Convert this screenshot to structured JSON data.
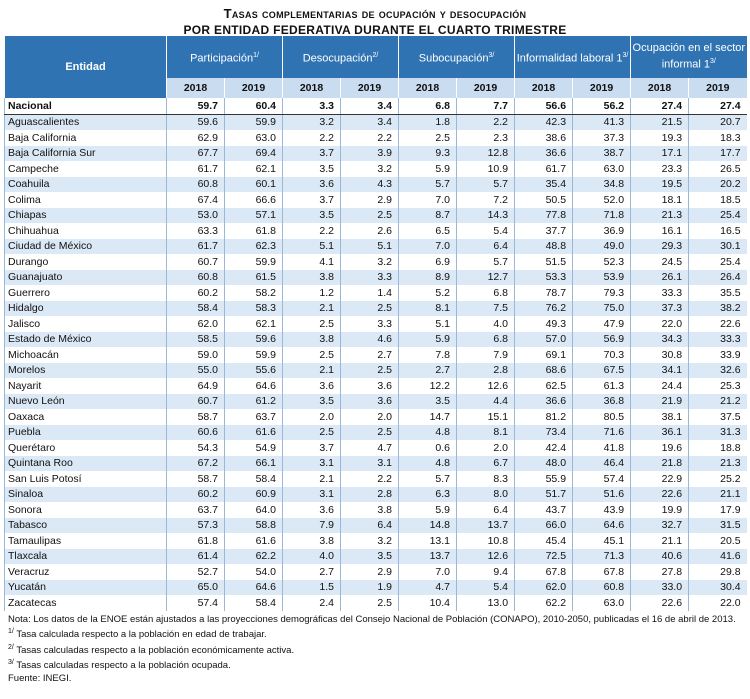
{
  "title": {
    "line1": "Tasas complementarias de ocupación y desocupación",
    "line2": "por entidad federativa durante el cuarto trimestre"
  },
  "table": {
    "entity_header": "Entidad",
    "groups": [
      {
        "label": "Participación",
        "note": "1/"
      },
      {
        "label": "Desocupación",
        "note": "2/"
      },
      {
        "label": "Subocupación",
        "note": "3/"
      },
      {
        "label": "Informalidad laboral 1",
        "note": "3/"
      },
      {
        "label": "Ocupación en el sector informal 1",
        "note": "3/"
      }
    ],
    "years": [
      "2018",
      "2019"
    ],
    "rows": [
      [
        "Nacional",
        "59.7",
        "60.4",
        "3.3",
        "3.4",
        "6.8",
        "7.7",
        "56.6",
        "56.2",
        "27.4",
        "27.4"
      ],
      [
        "Aguascalientes",
        "59.6",
        "59.9",
        "3.2",
        "3.4",
        "1.8",
        "2.2",
        "42.3",
        "41.3",
        "21.5",
        "20.7"
      ],
      [
        "Baja California",
        "62.9",
        "63.0",
        "2.2",
        "2.2",
        "2.5",
        "2.3",
        "38.6",
        "37.3",
        "19.3",
        "18.3"
      ],
      [
        "Baja California Sur",
        "67.7",
        "69.4",
        "3.7",
        "3.9",
        "9.3",
        "12.8",
        "36.6",
        "38.7",
        "17.1",
        "17.7"
      ],
      [
        "Campeche",
        "61.7",
        "62.1",
        "3.5",
        "3.2",
        "5.9",
        "10.9",
        "61.7",
        "63.0",
        "23.3",
        "26.5"
      ],
      [
        "Coahuila",
        "60.8",
        "60.1",
        "3.6",
        "4.3",
        "5.7",
        "5.7",
        "35.4",
        "34.8",
        "19.5",
        "20.2"
      ],
      [
        "Colima",
        "67.4",
        "66.6",
        "3.7",
        "2.9",
        "7.0",
        "7.2",
        "50.5",
        "52.0",
        "18.1",
        "18.5"
      ],
      [
        "Chiapas",
        "53.0",
        "57.1",
        "3.5",
        "2.5",
        "8.7",
        "14.3",
        "77.8",
        "71.8",
        "21.3",
        "25.4"
      ],
      [
        "Chihuahua",
        "63.3",
        "61.8",
        "2.2",
        "2.6",
        "6.5",
        "5.4",
        "37.7",
        "36.9",
        "16.1",
        "16.5"
      ],
      [
        "Ciudad de México",
        "61.7",
        "62.3",
        "5.1",
        "5.1",
        "7.0",
        "6.4",
        "48.8",
        "49.0",
        "29.3",
        "30.1"
      ],
      [
        "Durango",
        "60.7",
        "59.9",
        "4.1",
        "3.2",
        "6.9",
        "5.7",
        "51.5",
        "52.3",
        "24.5",
        "25.4"
      ],
      [
        "Guanajuato",
        "60.8",
        "61.5",
        "3.8",
        "3.3",
        "8.9",
        "12.7",
        "53.3",
        "53.9",
        "26.1",
        "26.4"
      ],
      [
        "Guerrero",
        "60.2",
        "58.2",
        "1.2",
        "1.4",
        "5.2",
        "6.8",
        "78.7",
        "79.3",
        "33.3",
        "35.5"
      ],
      [
        "Hidalgo",
        "58.4",
        "58.3",
        "2.1",
        "2.5",
        "8.1",
        "7.5",
        "76.2",
        "75.0",
        "37.3",
        "38.2"
      ],
      [
        "Jalisco",
        "62.0",
        "62.1",
        "2.5",
        "3.3",
        "5.1",
        "4.0",
        "49.3",
        "47.9",
        "22.0",
        "22.6"
      ],
      [
        "Estado de México",
        "58.5",
        "59.6",
        "3.8",
        "4.6",
        "5.9",
        "6.8",
        "57.0",
        "56.9",
        "34.3",
        "33.3"
      ],
      [
        "Michoacán",
        "59.0",
        "59.9",
        "2.5",
        "2.7",
        "7.8",
        "7.9",
        "69.1",
        "70.3",
        "30.8",
        "33.9"
      ],
      [
        "Morelos",
        "55.0",
        "55.6",
        "2.1",
        "2.5",
        "2.7",
        "2.8",
        "68.6",
        "67.5",
        "34.1",
        "32.6"
      ],
      [
        "Nayarit",
        "64.9",
        "64.6",
        "3.6",
        "3.6",
        "12.2",
        "12.6",
        "62.5",
        "61.3",
        "24.4",
        "25.3"
      ],
      [
        "Nuevo León",
        "60.7",
        "61.2",
        "3.5",
        "3.6",
        "3.5",
        "4.4",
        "36.6",
        "36.8",
        "21.9",
        "21.2"
      ],
      [
        "Oaxaca",
        "58.7",
        "63.7",
        "2.0",
        "2.0",
        "14.7",
        "15.1",
        "81.2",
        "80.5",
        "38.1",
        "37.5"
      ],
      [
        "Puebla",
        "60.6",
        "61.6",
        "2.5",
        "2.5",
        "4.8",
        "8.1",
        "73.4",
        "71.6",
        "36.1",
        "31.3"
      ],
      [
        "Querétaro",
        "54.3",
        "54.9",
        "3.7",
        "4.7",
        "0.6",
        "2.0",
        "42.4",
        "41.8",
        "19.6",
        "18.8"
      ],
      [
        "Quintana Roo",
        "67.2",
        "66.1",
        "3.1",
        "3.1",
        "4.8",
        "6.7",
        "48.0",
        "46.4",
        "21.8",
        "21.3"
      ],
      [
        "San Luis Potosí",
        "58.7",
        "58.4",
        "2.1",
        "2.2",
        "5.7",
        "8.3",
        "55.9",
        "57.4",
        "22.9",
        "25.2"
      ],
      [
        "Sinaloa",
        "60.2",
        "60.9",
        "3.1",
        "2.8",
        "6.3",
        "8.0",
        "51.7",
        "51.6",
        "22.6",
        "21.1"
      ],
      [
        "Sonora",
        "63.7",
        "64.0",
        "3.6",
        "3.8",
        "5.9",
        "6.4",
        "43.7",
        "43.9",
        "19.9",
        "17.9"
      ],
      [
        "Tabasco",
        "57.3",
        "58.8",
        "7.9",
        "6.4",
        "14.8",
        "13.7",
        "66.0",
        "64.6",
        "32.7",
        "31.5"
      ],
      [
        "Tamaulipas",
        "61.8",
        "61.6",
        "3.8",
        "3.2",
        "13.1",
        "10.8",
        "45.4",
        "45.1",
        "21.1",
        "20.5"
      ],
      [
        "Tlaxcala",
        "61.4",
        "62.2",
        "4.0",
        "3.5",
        "13.7",
        "12.6",
        "72.5",
        "71.3",
        "40.6",
        "41.6"
      ],
      [
        "Veracruz",
        "52.7",
        "54.0",
        "2.7",
        "2.9",
        "7.0",
        "9.4",
        "67.8",
        "67.8",
        "27.8",
        "29.8"
      ],
      [
        "Yucatán",
        "65.0",
        "64.6",
        "1.5",
        "1.9",
        "4.7",
        "5.4",
        "62.0",
        "60.8",
        "33.0",
        "30.4"
      ],
      [
        "Zacatecas",
        "57.4",
        "58.4",
        "2.4",
        "2.5",
        "10.4",
        "13.0",
        "62.2",
        "63.0",
        "22.6",
        "22.0"
      ]
    ]
  },
  "notes": {
    "main": "Nota: Los datos de la ENOE están ajustados a las proyecciones demográficas del Consejo Nacional de Población (CONAPO), 2010-2050, publicadas el 16 de abril de 2013.",
    "footnotes": [
      {
        "mark": "1/",
        "text": "Tasa calculada respecto a la población en edad de trabajar."
      },
      {
        "mark": "2/",
        "text": "Tasas calculadas respecto a la población económicamente activa."
      },
      {
        "mark": "3/",
        "text": "Tasas calculadas respecto a la población ocupada."
      }
    ],
    "source": "Fuente:  INEGI."
  }
}
